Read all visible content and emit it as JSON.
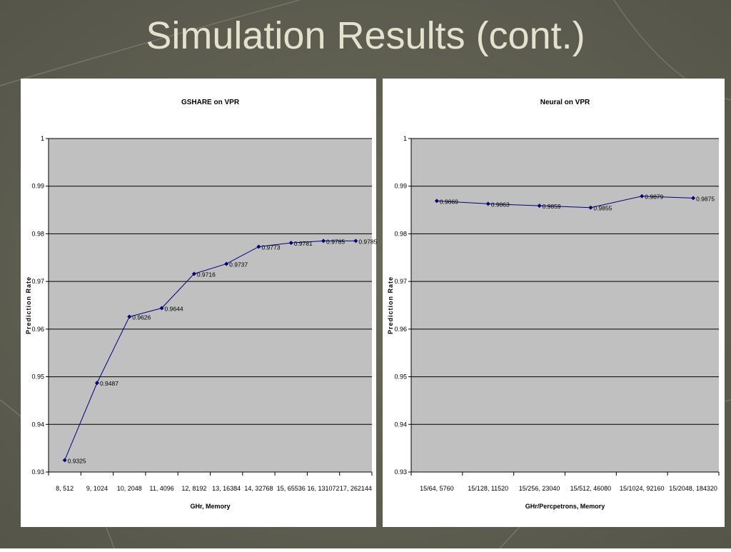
{
  "title": "Simulation Results (cont.)",
  "chart_data": [
    {
      "type": "line",
      "title": "GSHARE on VPR",
      "x_label": "GHr, Memory",
      "y_label": "Prediction Rate",
      "categories": [
        "8, 512",
        "9, 1024",
        "10, 2048",
        "11, 4096",
        "12, 8192",
        "13, 16384",
        "14, 32768",
        "15, 65536",
        "16, 131072",
        "17, 262144"
      ],
      "values": [
        0.9325,
        0.9487,
        0.9626,
        0.9644,
        0.9716,
        0.9737,
        0.9773,
        0.9781,
        0.9785,
        0.9785
      ],
      "color": "#000080",
      "ylim": [
        0.93,
        1
      ],
      "yticks": [
        0.93,
        0.94,
        0.95,
        0.96,
        0.97,
        0.98,
        0.99,
        1
      ],
      "grid": true
    },
    {
      "type": "line",
      "title": "Neural on VPR",
      "x_label": "GHr/Percpetrons, Memory",
      "y_label": "Prediction Rate",
      "categories": [
        "15/64, 5760",
        "15/128, 11520",
        "15/256, 23040",
        "15/512, 46080",
        "15/1024, 92160",
        "15/2048, 184320"
      ],
      "values": [
        0.9869,
        0.9863,
        0.9859,
        0.9855,
        0.9879,
        0.9875
      ],
      "color": "#000080",
      "ylim": [
        0.93,
        1
      ],
      "yticks": [
        0.93,
        0.94,
        0.95,
        0.96,
        0.97,
        0.98,
        0.99,
        1
      ],
      "grid": true
    }
  ]
}
